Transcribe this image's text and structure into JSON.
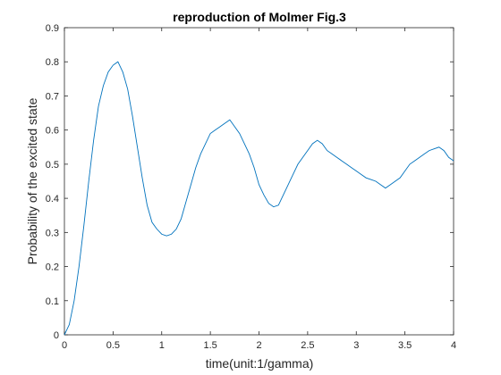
{
  "chart_data": {
    "type": "line",
    "title": "reproduction of Molmer Fig.3",
    "xlabel": "time(unit:1/gamma)",
    "ylabel": "Probability of the excited state",
    "xlim": [
      0,
      4
    ],
    "ylim": [
      0,
      0.9
    ],
    "xticks": [
      0,
      0.5,
      1,
      1.5,
      2,
      2.5,
      3,
      3.5,
      4
    ],
    "yticks": [
      0,
      0.1,
      0.2,
      0.3,
      0.4,
      0.5,
      0.6,
      0.7,
      0.8,
      0.9
    ],
    "xtick_labels": [
      "0",
      "0.5",
      "1",
      "1.5",
      "2",
      "2.5",
      "3",
      "3.5",
      "4"
    ],
    "ytick_labels": [
      "0",
      "0.1",
      "0.2",
      "0.3",
      "0.4",
      "0.5",
      "0.6",
      "0.7",
      "0.8",
      "0.9"
    ],
    "grid": false,
    "line_color": "#0072BD",
    "series": [
      {
        "x": [
          0,
          0.05,
          0.1,
          0.15,
          0.2,
          0.25,
          0.3,
          0.35,
          0.4,
          0.45,
          0.5,
          0.55,
          0.6,
          0.65,
          0.7,
          0.75,
          0.8,
          0.85,
          0.9,
          0.95,
          1.0,
          1.05,
          1.1,
          1.15,
          1.2,
          1.25,
          1.3,
          1.35,
          1.4,
          1.45,
          1.5,
          1.55,
          1.6,
          1.65,
          1.7,
          1.75,
          1.8,
          1.85,
          1.9,
          1.95,
          2.0,
          2.05,
          2.1,
          2.15,
          2.2,
          2.25,
          2.3,
          2.35,
          2.4,
          2.45,
          2.5,
          2.55,
          2.6,
          2.65,
          2.7,
          2.75,
          2.8,
          2.85,
          2.9,
          2.95,
          3.0,
          3.05,
          3.1,
          3.15,
          3.2,
          3.25,
          3.3,
          3.35,
          3.4,
          3.45,
          3.5,
          3.55,
          3.6,
          3.65,
          3.7,
          3.75,
          3.8,
          3.85,
          3.9,
          3.95,
          4.0
        ],
        "values": [
          0.0,
          0.03,
          0.1,
          0.2,
          0.32,
          0.45,
          0.57,
          0.67,
          0.73,
          0.77,
          0.79,
          0.8,
          0.77,
          0.72,
          0.64,
          0.55,
          0.46,
          0.38,
          0.33,
          0.31,
          0.295,
          0.29,
          0.295,
          0.31,
          0.34,
          0.39,
          0.44,
          0.49,
          0.53,
          0.56,
          0.59,
          0.6,
          0.61,
          0.62,
          0.63,
          0.61,
          0.59,
          0.56,
          0.53,
          0.49,
          0.44,
          0.41,
          0.385,
          0.375,
          0.38,
          0.41,
          0.44,
          0.47,
          0.5,
          0.52,
          0.54,
          0.56,
          0.57,
          0.56,
          0.54,
          0.53,
          0.52,
          0.51,
          0.5,
          0.49,
          0.48,
          0.47,
          0.46,
          0.455,
          0.45,
          0.44,
          0.43,
          0.44,
          0.45,
          0.46,
          0.48,
          0.5,
          0.51,
          0.52,
          0.53,
          0.54,
          0.545,
          0.55,
          0.54,
          0.52,
          0.51
        ]
      }
    ]
  }
}
